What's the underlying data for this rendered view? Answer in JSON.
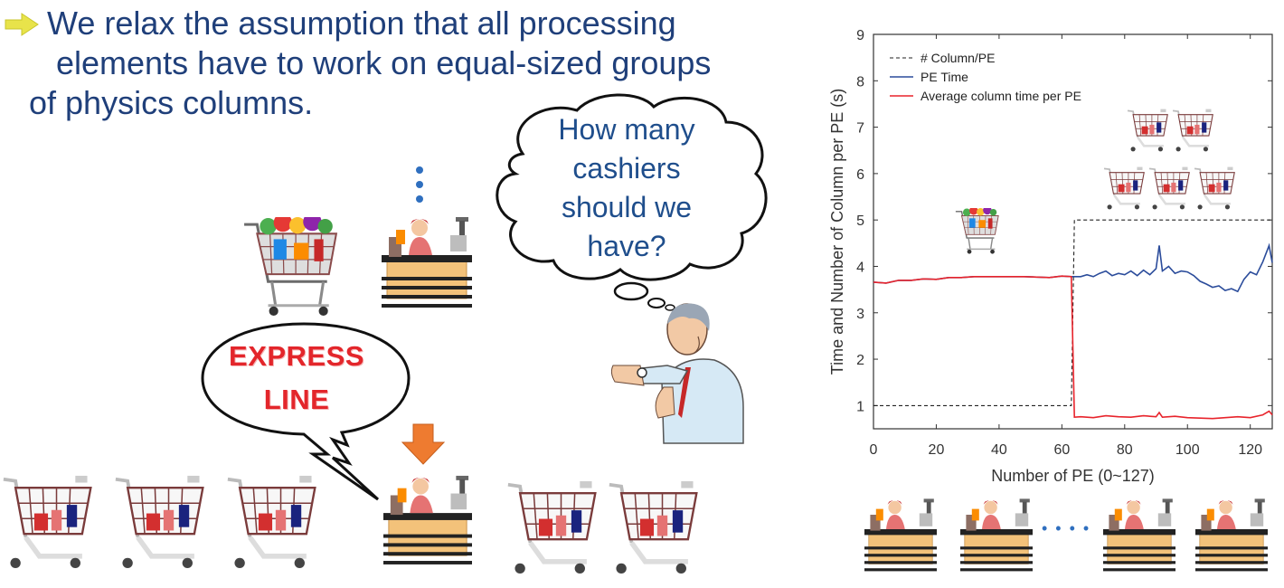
{
  "bullet": {
    "line1": "We relax the assumption that all processing",
    "line2": "elements have to work on equal-sized groups",
    "line3": "of physics columns."
  },
  "thought_bubble": {
    "line1": "How many",
    "line2": "cashiers",
    "line3": "should we",
    "line4": "have?"
  },
  "speech_bubble": {
    "line1": "EXPRESS",
    "line2": "LINE"
  },
  "chart_ellipsis": "• • • •",
  "colors": {
    "text_blue": "#1f3f7a",
    "express_red": "#e3262b",
    "series_pe_time": "#2b4c9b",
    "series_avg_col": "#e8242c",
    "series_cols": "#222222"
  },
  "chart_data": {
    "type": "line",
    "xlabel": "Number of PE (0~127)",
    "ylabel": "Time and Number of Column per PE (s)",
    "xlim": [
      0,
      127
    ],
    "ylim": [
      0.5,
      9
    ],
    "xticks": [
      0,
      20,
      40,
      60,
      80,
      100,
      120
    ],
    "yticks": [
      1,
      2,
      3,
      4,
      5,
      6,
      7,
      8,
      9
    ],
    "legend_position": "top-left",
    "series": [
      {
        "name": "# Column/PE",
        "style": "dashed",
        "color": "#222222",
        "x": [
          0,
          63,
          64,
          127
        ],
        "y": [
          1,
          1,
          5,
          5
        ]
      },
      {
        "name": "PE Time",
        "style": "solid",
        "color": "#2b4c9b",
        "x": [
          0,
          4,
          8,
          12,
          16,
          20,
          24,
          28,
          32,
          36,
          40,
          44,
          48,
          52,
          56,
          60,
          63,
          64,
          66,
          68,
          70,
          72,
          74,
          76,
          78,
          80,
          82,
          84,
          86,
          88,
          90,
          91,
          92,
          94,
          96,
          98,
          100,
          102,
          104,
          106,
          108,
          110,
          112,
          114,
          116,
          118,
          120,
          122,
          124,
          126,
          127
        ],
        "y": [
          3.66,
          3.64,
          3.7,
          3.7,
          3.73,
          3.72,
          3.76,
          3.76,
          3.78,
          3.78,
          3.78,
          3.78,
          3.78,
          3.77,
          3.76,
          3.79,
          3.78,
          3.78,
          3.78,
          3.82,
          3.78,
          3.85,
          3.9,
          3.8,
          3.85,
          3.82,
          3.9,
          3.8,
          3.92,
          3.82,
          3.95,
          4.45,
          3.9,
          4.0,
          3.85,
          3.9,
          3.88,
          3.8,
          3.68,
          3.62,
          3.55,
          3.58,
          3.48,
          3.52,
          3.46,
          3.72,
          3.88,
          3.82,
          4.1,
          4.45,
          4.08
        ]
      },
      {
        "name": "Average column time per PE",
        "style": "solid",
        "color": "#e8242c",
        "x": [
          0,
          4,
          8,
          12,
          16,
          20,
          24,
          28,
          32,
          36,
          40,
          44,
          48,
          52,
          56,
          60,
          63,
          64,
          66,
          70,
          74,
          78,
          82,
          86,
          90,
          91,
          92,
          96,
          100,
          104,
          108,
          112,
          116,
          120,
          124,
          126,
          127
        ],
        "y": [
          3.66,
          3.64,
          3.7,
          3.7,
          3.73,
          3.72,
          3.76,
          3.76,
          3.78,
          3.78,
          3.78,
          3.78,
          3.78,
          3.77,
          3.76,
          3.79,
          3.78,
          0.75,
          0.76,
          0.74,
          0.78,
          0.76,
          0.75,
          0.78,
          0.76,
          0.85,
          0.75,
          0.77,
          0.74,
          0.73,
          0.72,
          0.74,
          0.76,
          0.74,
          0.8,
          0.88,
          0.8
        ]
      }
    ]
  }
}
